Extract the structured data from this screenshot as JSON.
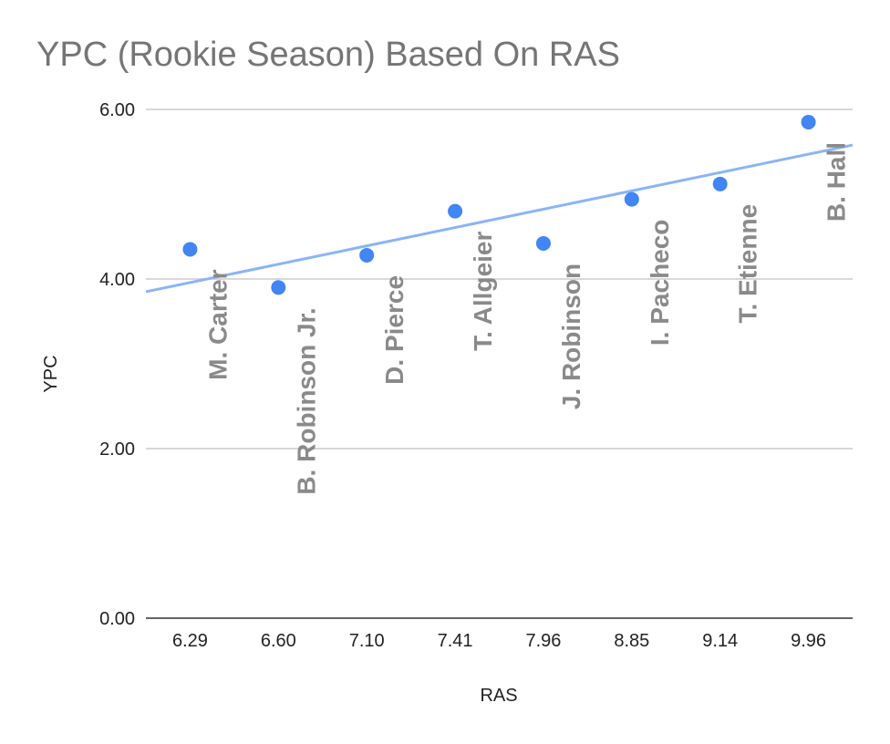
{
  "chart_data": {
    "type": "scatter",
    "title": "YPC (Rookie Season) Based On RAS",
    "xlabel": "RAS",
    "ylabel": "YPC",
    "categories": [
      "6.29",
      "6.60",
      "7.10",
      "7.41",
      "7.96",
      "8.85",
      "9.14",
      "9.96"
    ],
    "series": [
      {
        "values": [
          4.35,
          3.9,
          4.28,
          4.8,
          4.42,
          4.94,
          5.12,
          5.85
        ]
      }
    ],
    "point_labels": [
      "M. Carter",
      "B. Robinson Jr.",
      "D. Pierce",
      "T. Allgeier",
      "J. Robinson",
      "I. Pacheco",
      "T. Etienne",
      "B. Hall"
    ],
    "trendline": {
      "type": "linear",
      "start": 3.85,
      "end": 5.58
    },
    "ylim": [
      0,
      6
    ],
    "yticks": [
      "0.00",
      "2.00",
      "4.00",
      "6.00"
    ],
    "grid": true,
    "legend": "none",
    "colors": {
      "points": "#4285f4",
      "trendline": "#8ab4f8",
      "title": "#757575",
      "point_labels": "#8a8a8a",
      "grid": "#cccccc"
    }
  }
}
